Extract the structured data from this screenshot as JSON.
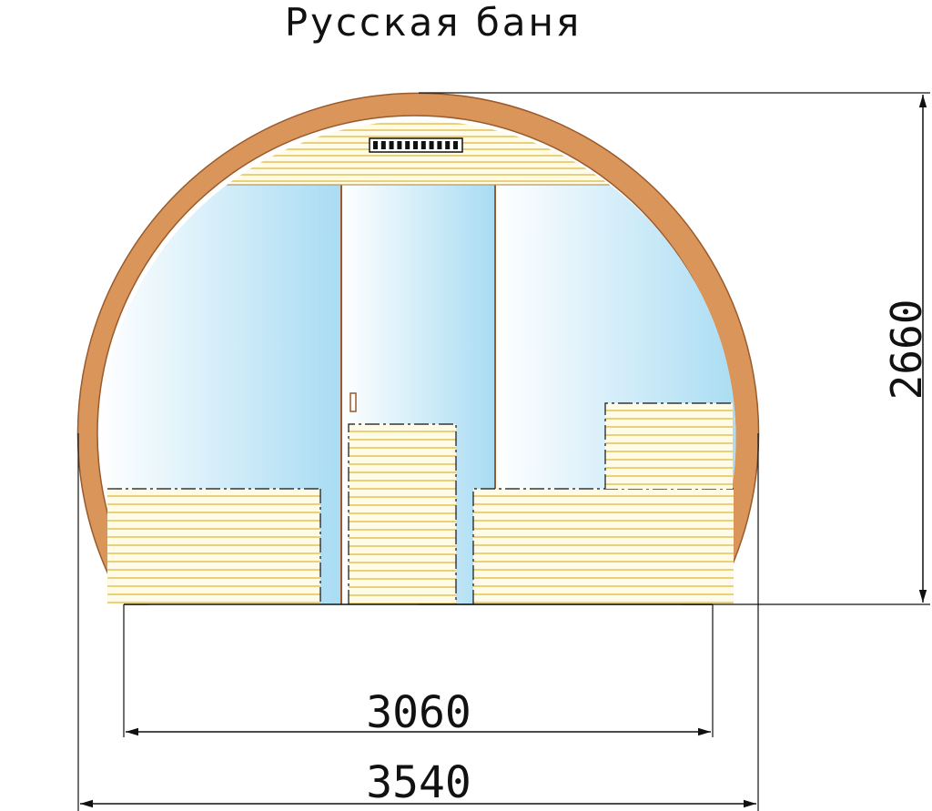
{
  "title": "Русская баня",
  "dimensions": {
    "height": "2660",
    "inner_width": "3060",
    "outer_width": "3540"
  },
  "colors": {
    "wood_shell": "#d9955a",
    "wood_outline": "#9a5a2c",
    "board_fill": "#fffbe6",
    "board_line": "#e0c15a",
    "glass_dark": "#a8dcf4",
    "glass_light": "#ffffff",
    "line": "#111111"
  }
}
